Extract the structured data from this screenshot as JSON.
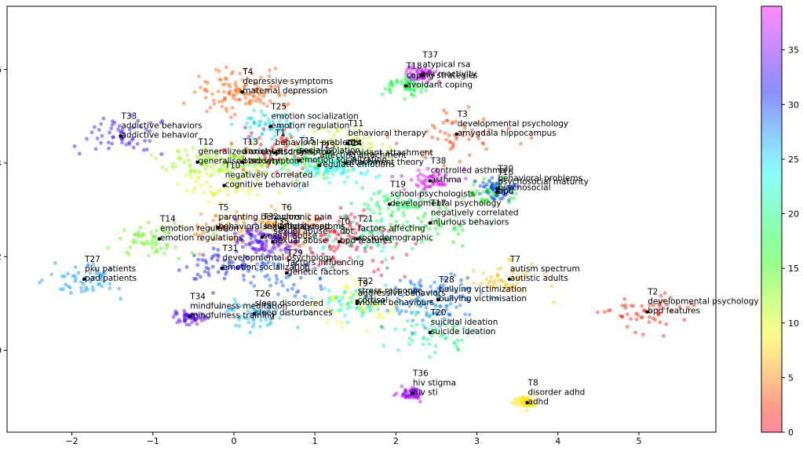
{
  "chart_data": {
    "type": "scatter",
    "title": "",
    "xlabel": "",
    "ylabel": "",
    "xlim": [
      -2.8,
      5.95
    ],
    "ylim": [
      -1.75,
      7.35
    ],
    "x_ticks": [
      -2,
      -1,
      0,
      1,
      2,
      3,
      4,
      5
    ],
    "y_ticks": [
      0,
      2,
      4,
      6
    ],
    "grid": false,
    "colorbar": {
      "min": 0,
      "max": 39,
      "ticks": [
        0,
        5,
        10,
        15,
        20,
        25,
        30,
        35
      ],
      "colormap": "gist_rainbow"
    },
    "annotations": [
      {
        "label": "T0",
        "x": 1.3,
        "y": 2.32,
        "lines": [
          "T0",
          "dbt",
          "bpd features"
        ]
      },
      {
        "label": "T1",
        "x": 0.5,
        "y": 4.22,
        "lines": [
          "T1",
          "behavioral problems",
          "ptsd symptom"
        ]
      },
      {
        "label": "T2",
        "x": 5.1,
        "y": 0.82,
        "lines": [
          "T2",
          "developmental psychology",
          "bpd features"
        ]
      },
      {
        "label": "T3",
        "x": 2.75,
        "y": 4.62,
        "lines": [
          "T3",
          "developmental psychology",
          "amygdala hippocampus"
        ]
      },
      {
        "label": "T4",
        "x": 0.1,
        "y": 5.52,
        "lines": [
          "T4",
          "depressive symptoms",
          "maternal depression"
        ]
      },
      {
        "label": "T5",
        "x": -0.2,
        "y": 2.62,
        "lines": [
          "T5",
          "parenting behaviors",
          "behavioral inhibition"
        ]
      },
      {
        "label": "T6",
        "x": 0.58,
        "y": 2.62,
        "lines": [
          "T6",
          "chronic pain",
          "ptsd symptoms"
        ]
      },
      {
        "label": "T7",
        "x": 3.4,
        "y": 1.52,
        "lines": [
          "T7",
          "autism spectrum",
          "autistic adults"
        ]
      },
      {
        "label": "T8",
        "x": 3.62,
        "y": -1.12,
        "lines": [
          "T8",
          "disorder adhd",
          "adhd"
        ]
      },
      {
        "label": "T9",
        "x": 1.52,
        "y": 1.0,
        "lines": [
          "T9",
          "aggressive behaviors",
          "violent behaviours"
        ]
      },
      {
        "label": "T10",
        "x": -0.12,
        "y": 3.52,
        "lines": [
          "T10",
          "negatively correlated",
          "cognitive behavioral"
        ]
      },
      {
        "label": "T11",
        "x": 1.4,
        "y": 4.42,
        "lines": [
          "T11",
          "behavioral therapy",
          "dbt"
        ]
      },
      {
        "label": "T12",
        "x": -0.45,
        "y": 4.02,
        "lines": [
          "T12",
          "generalized anxiety",
          "generalised anxiety"
        ]
      },
      {
        "label": "T13",
        "x": 0.1,
        "y": 4.02,
        "lines": [
          "T13",
          "anxiety disorders",
          "ptsd symptom"
        ]
      },
      {
        "label": "T14",
        "x": -0.92,
        "y": 2.38,
        "lines": [
          "T14",
          "emotion regulation",
          "emotion regulations"
        ]
      },
      {
        "label": "T15",
        "x": 0.8,
        "y": 4.05,
        "lines": [
          "T15",
          "social isolation",
          "emotion socialization"
        ]
      },
      {
        "label": "T16",
        "x": 3.25,
        "y": 3.38,
        "lines": [
          "T16",
          "psychosocial maturity",
          "bpd"
        ]
      },
      {
        "label": "T17",
        "x": 2.42,
        "y": 2.72,
        "lines": [
          "T17",
          "negatively correlated",
          "injurious behaviors"
        ]
      },
      {
        "label": "T18",
        "x": 2.12,
        "y": 5.65,
        "lines": [
          "T18",
          "coping strategies",
          "avoidant coping"
        ]
      },
      {
        "label": "T19",
        "x": 1.92,
        "y": 3.12,
        "lines": [
          "T19",
          "school psychologists",
          "developmental psychology"
        ]
      },
      {
        "label": "T20",
        "x": 2.42,
        "y": 0.38,
        "lines": [
          "T20",
          "suicidal ideation",
          "suicide ideation"
        ]
      },
      {
        "label": "T21",
        "x": 1.52,
        "y": 2.38,
        "lines": [
          "T21",
          "factors affecting",
          "sociodemographic"
        ]
      },
      {
        "label": "T22",
        "x": 1.52,
        "y": 1.05,
        "lines": [
          "T22",
          "stress response",
          "cortisol"
        ]
      },
      {
        "label": "T23",
        "x": 1.05,
        "y": 3.95,
        "lines": [
          "T23",
          "affecting attachment",
          "regulate emotions"
        ]
      },
      {
        "label": "T24",
        "x": 1.38,
        "y": 4.0,
        "lines": [
          "T24",
          "avoidant attachment",
          "attachment theory"
        ]
      },
      {
        "label": "T25",
        "x": 0.45,
        "y": 4.78,
        "lines": [
          "T25",
          "emotion socialization",
          "emotion regulation"
        ]
      },
      {
        "label": "T26",
        "x": 0.25,
        "y": 0.78,
        "lines": [
          "T26",
          "sleep disordered",
          "sleep disturbances"
        ]
      },
      {
        "label": "T27",
        "x": -1.85,
        "y": 1.52,
        "lines": [
          "T27",
          "pku patients",
          "pad patients"
        ]
      },
      {
        "label": "T28",
        "x": 2.52,
        "y": 1.08,
        "lines": [
          "T28",
          "bullying victimization",
          "bullying victimisation"
        ]
      },
      {
        "label": "T29",
        "x": 0.65,
        "y": 1.65,
        "lines": [
          "T29",
          "factors influencing",
          "genetic factors"
        ]
      },
      {
        "label": "T30",
        "x": 3.25,
        "y": 3.45,
        "lines": [
          "T30",
          "behavioral problems",
          "psychosocial"
        ]
      },
      {
        "label": "T31",
        "x": -0.15,
        "y": 1.75,
        "lines": [
          "T31",
          "developmental psychology",
          "emotion socialization"
        ]
      },
      {
        "label": "T32",
        "x": 0.35,
        "y": 2.42,
        "lines": [
          "T32",
          "sexually abused",
          "sexual abuse"
        ]
      },
      {
        "label": "T33",
        "x": -1.4,
        "y": 4.58,
        "lines": [
          "T33",
          "addictive behaviors",
          "addictive behavior"
        ]
      },
      {
        "label": "T34",
        "x": -0.55,
        "y": 0.72,
        "lines": [
          "T34",
          "mindfulness meditation",
          "mindfulness training"
        ]
      },
      {
        "label": "T35",
        "x": 0.48,
        "y": 2.32,
        "lines": [
          "T35",
          "sexual abuse",
          "sexual abuse"
        ]
      },
      {
        "label": "T36",
        "x": 2.2,
        "y": -0.92,
        "lines": [
          "T36",
          "hiv stigma",
          "hiv sti"
        ]
      },
      {
        "label": "T37",
        "x": 2.32,
        "y": 5.88,
        "lines": [
          "T37",
          "atypical rsa",
          "rsa reactivity"
        ]
      },
      {
        "label": "T38",
        "x": 2.42,
        "y": 3.62,
        "lines": [
          "T38",
          "controlled asthma",
          "asthma"
        ]
      }
    ]
  }
}
